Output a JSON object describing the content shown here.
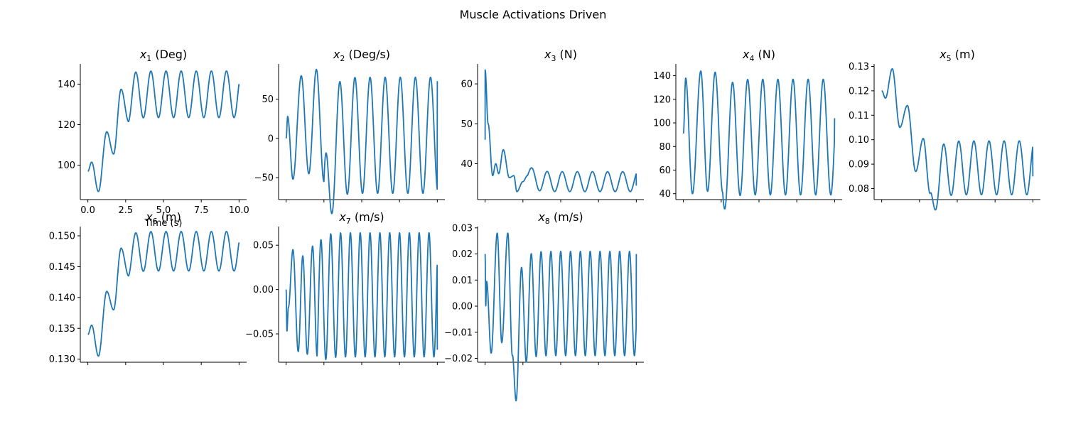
{
  "figure": {
    "suptitle": "Muscle Activations Driven",
    "line_color": "#1f77b4"
  },
  "chart_data": [
    {
      "type": "line",
      "title_var": "x",
      "title_sub": "1",
      "title_unit": " (Deg)",
      "xlabel": "Time (s)",
      "ylabel": "",
      "xlim": [
        -0.5,
        10.5
      ],
      "ylim": [
        83,
        150
      ],
      "yticks": [
        100,
        120,
        140
      ],
      "ytick_labels": [
        "100",
        "120",
        "140"
      ],
      "xticks": [
        0,
        2.5,
        5,
        7.5,
        10
      ],
      "xtick_labels": [
        "0.0",
        "2.5",
        "5.0",
        "7.5",
        "10.0"
      ],
      "show_xtick_labels": true,
      "signal": {
        "start": 97,
        "steady_mean": 135,
        "steady_amp": 11.5,
        "period": 1.0,
        "phase": 0.17,
        "transient": [
          [
            0,
            97
          ],
          [
            0.25,
            101.5
          ],
          [
            0.7,
            87
          ],
          [
            1.25,
            116.5
          ],
          [
            1.7,
            105.5
          ],
          [
            2.2,
            137.5
          ],
          [
            2.7,
            121.5
          ]
        ],
        "end_value": 139
      }
    },
    {
      "type": "line",
      "title_var": "x",
      "title_sub": "2",
      "title_unit": " (Deg/s)",
      "xlabel": "",
      "ylabel": "",
      "xlim": [
        -0.5,
        10.5
      ],
      "ylim": [
        -78,
        95
      ],
      "yticks": [
        -50,
        0,
        50
      ],
      "ytick_labels": [
        "−50",
        "0",
        "50"
      ],
      "xticks": [
        0,
        2.5,
        5,
        7.5,
        10
      ],
      "xtick_labels": [
        "",
        "",
        "",
        "",
        ""
      ],
      "show_xtick_labels": false,
      "signal": {
        "start": 0,
        "steady_mean": 4,
        "steady_amp": 74,
        "period": 1.0,
        "phase": 0.55,
        "transient": [
          [
            0,
            0
          ],
          [
            0.1,
            28
          ],
          [
            0.45,
            -52
          ],
          [
            1.0,
            80
          ],
          [
            1.5,
            -45
          ],
          [
            2.0,
            88
          ],
          [
            2.5,
            -55
          ]
        ],
        "end_value": 73
      }
    },
    {
      "type": "line",
      "title_var": "x",
      "title_sub": "3",
      "title_unit": " (N)",
      "xlabel": "",
      "ylabel": "",
      "xlim": [
        -0.5,
        10.5
      ],
      "ylim": [
        31,
        65
      ],
      "yticks": [
        40,
        50,
        60
      ],
      "ytick_labels": [
        "40",
        "50",
        "60"
      ],
      "xticks": [
        0,
        2.5,
        5,
        7.5,
        10
      ],
      "xtick_labels": [
        "",
        "",
        "",
        "",
        ""
      ],
      "show_xtick_labels": false,
      "signal": {
        "start": 46,
        "spike": 63.5,
        "steady_mean": 35.5,
        "steady_amp": 2.5,
        "period": 1.0,
        "phase": 0.1,
        "transient": [
          [
            0,
            63.5
          ],
          [
            0.2,
            50
          ],
          [
            0.5,
            37
          ],
          [
            0.7,
            40
          ],
          [
            0.9,
            37.5
          ],
          [
            1.2,
            43.5
          ],
          [
            1.6,
            36.5
          ],
          [
            1.9,
            37
          ],
          [
            2.1,
            33
          ],
          [
            2.5,
            35.5
          ],
          [
            2.8,
            37
          ]
        ],
        "end_value": 34.5
      }
    },
    {
      "type": "line",
      "title_var": "x",
      "title_sub": "4",
      "title_unit": " (N)",
      "xlabel": "",
      "ylabel": "",
      "xlim": [
        -0.5,
        10.5
      ],
      "ylim": [
        35,
        150
      ],
      "yticks": [
        40,
        60,
        80,
        100,
        120,
        140
      ],
      "ytick_labels": [
        "40",
        "60",
        "80",
        "100",
        "120",
        "140"
      ],
      "xticks": [
        0,
        2.5,
        5,
        7.5,
        10
      ],
      "xtick_labels": [
        "",
        "",
        "",
        "",
        ""
      ],
      "show_xtick_labels": false,
      "signal": {
        "start": 91,
        "steady_mean": 88,
        "steady_amp": 49,
        "period": 1.0,
        "phase": 0.25,
        "transient": [
          [
            0,
            91
          ],
          [
            0.15,
            138
          ],
          [
            0.6,
            40
          ],
          [
            1.15,
            144
          ],
          [
            1.6,
            42
          ],
          [
            2.1,
            143
          ],
          [
            2.6,
            41
          ]
        ],
        "end_value": 104
      }
    },
    {
      "type": "line",
      "title_var": "x",
      "title_sub": "5",
      "title_unit": " (m)",
      "xlabel": "",
      "ylabel": "",
      "xlim": [
        -0.5,
        10.5
      ],
      "ylim": [
        0.0755,
        0.131
      ],
      "yticks": [
        0.08,
        0.09,
        0.1,
        0.11,
        0.12,
        0.13
      ],
      "ytick_labels": [
        "0.08",
        "0.09",
        "0.10",
        "0.11",
        "0.12",
        "0.13"
      ],
      "xticks": [
        0,
        2.5,
        5,
        7.5,
        10
      ],
      "xtick_labels": [
        "",
        "",
        "",
        "",
        ""
      ],
      "show_xtick_labels": false,
      "signal": {
        "start": 0.12,
        "steady_mean": 0.0885,
        "steady_amp": 0.011,
        "period": 1.0,
        "phase": 0.1,
        "transient": [
          [
            0,
            0.12
          ],
          [
            0.25,
            0.117
          ],
          [
            0.7,
            0.129
          ],
          [
            1.2,
            0.105
          ],
          [
            1.7,
            0.114
          ],
          [
            2.25,
            0.087
          ],
          [
            2.75,
            0.1005
          ],
          [
            3.2,
            0.078
          ]
        ],
        "end_value": 0.085
      }
    },
    {
      "type": "line",
      "title_var": "x",
      "title_sub": "6",
      "title_unit": " (m)",
      "xlabel": "",
      "ylabel": "",
      "xlim": [
        -0.5,
        10.5
      ],
      "ylim": [
        0.1295,
        0.1515
      ],
      "yticks": [
        0.13,
        0.135,
        0.14,
        0.145,
        0.15
      ],
      "ytick_labels": [
        "0.130",
        "0.135",
        "0.140",
        "0.145",
        "0.150"
      ],
      "xticks": [
        0,
        2.5,
        5,
        7.5,
        10
      ],
      "xtick_labels": [
        "",
        "",
        "",
        "",
        ""
      ],
      "show_xtick_labels": false,
      "signal": {
        "start": 0.134,
        "steady_mean": 0.1475,
        "steady_amp": 0.0032,
        "period": 1.0,
        "phase": 0.17,
        "transient": [
          [
            0,
            0.134
          ],
          [
            0.25,
            0.1355
          ],
          [
            0.7,
            0.1305
          ],
          [
            1.25,
            0.141
          ],
          [
            1.7,
            0.138
          ],
          [
            2.2,
            0.148
          ],
          [
            2.7,
            0.1435
          ]
        ],
        "end_value": 0.1487
      }
    },
    {
      "type": "line",
      "title_var": "x",
      "title_sub": "7",
      "title_unit": " (m/s)",
      "xlabel": "",
      "ylabel": "",
      "xlim": [
        -0.5,
        10.5
      ],
      "ylim": [
        -0.082,
        0.071
      ],
      "yticks": [
        -0.05,
        0.0,
        0.05
      ],
      "ytick_labels": [
        "−0.05",
        "0.00",
        "0.05"
      ],
      "xticks": [
        0,
        2.5,
        5,
        7.5,
        10
      ],
      "xtick_labels": [
        "",
        "",
        "",
        "",
        ""
      ],
      "show_xtick_labels": false,
      "signal": {
        "start": 0,
        "steady_mean": -0.006,
        "steady_amp": 0.07,
        "period": 0.65,
        "phase": 0.35,
        "transient": [
          [
            0,
            0
          ],
          [
            0.05,
            -0.047
          ],
          [
            0.15,
            -0.02
          ],
          [
            0.45,
            0.045
          ],
          [
            0.8,
            -0.07
          ],
          [
            1.1,
            0.038
          ],
          [
            1.4,
            -0.073
          ],
          [
            1.75,
            0.049
          ],
          [
            2.05,
            -0.075
          ]
        ],
        "end_value": -0.068
      }
    },
    {
      "type": "line",
      "title_var": "x",
      "title_sub": "8",
      "title_unit": " (m/s)",
      "xlabel": "",
      "ylabel": "",
      "xlim": [
        -0.5,
        10.5
      ],
      "ylim": [
        -0.0215,
        0.0305
      ],
      "yticks": [
        -0.02,
        -0.01,
        0.0,
        0.01,
        0.02,
        0.03
      ],
      "ytick_labels": [
        "−0.02",
        "−0.01",
        "0.00",
        "0.01",
        "0.02",
        "0.03"
      ],
      "xticks": [
        0,
        2.5,
        5,
        7.5,
        10
      ],
      "xtick_labels": [
        "",
        "",
        "",
        "",
        ""
      ],
      "show_xtick_labels": false,
      "signal": {
        "start": 0.02,
        "steady_mean": 0.001,
        "steady_amp": 0.02,
        "period": 0.65,
        "phase": 0.45,
        "transient": [
          [
            0,
            0.02
          ],
          [
            0.04,
            0.0
          ],
          [
            0.1,
            0.0095
          ],
          [
            0.4,
            -0.018
          ],
          [
            0.8,
            0.028
          ],
          [
            1.1,
            -0.014
          ],
          [
            1.5,
            0.028
          ],
          [
            1.8,
            -0.019
          ]
        ],
        "end_value": 0.02
      }
    }
  ]
}
